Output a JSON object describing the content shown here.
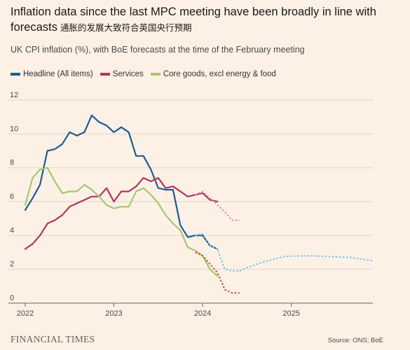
{
  "header": {
    "title": "Inflation data since the last MPC meeting have been broadly in line with forecasts",
    "title_cn": "通胀的发展大致符合英国央行预期",
    "subtitle": "UK CPI inflation (%), with BoE forecasts at the time of the February meeting"
  },
  "footer": {
    "brand": "FINANCIAL TIMES",
    "source": "Source: ONS; BoE"
  },
  "chart_data": {
    "type": "line",
    "ylim": [
      0,
      12
    ],
    "yticks": [
      "0",
      "2",
      "4",
      "6",
      "8",
      "10",
      "12"
    ],
    "xlim": [
      2022.0,
      2025.92
    ],
    "xticks": [
      {
        "value": 2022,
        "label": "2022"
      },
      {
        "value": 2023,
        "label": "2023"
      },
      {
        "value": 2024,
        "label": "2024"
      },
      {
        "value": 2025,
        "label": "2025"
      }
    ],
    "legend": [
      "Headline (All items)",
      "Services",
      "Core goods, excl energy & food"
    ],
    "series": [
      {
        "name": "Headline (All items)",
        "color": "#1f5a96",
        "style": "solid",
        "points": [
          [
            2022.0,
            5.5
          ],
          [
            2022.083,
            6.2
          ],
          [
            2022.167,
            7.0
          ],
          [
            2022.25,
            9.0
          ],
          [
            2022.333,
            9.1
          ],
          [
            2022.417,
            9.4
          ],
          [
            2022.5,
            10.1
          ],
          [
            2022.583,
            9.9
          ],
          [
            2022.667,
            10.1
          ],
          [
            2022.75,
            11.1
          ],
          [
            2022.833,
            10.7
          ],
          [
            2022.917,
            10.5
          ],
          [
            2023.0,
            10.1
          ],
          [
            2023.083,
            10.4
          ],
          [
            2023.167,
            10.1
          ],
          [
            2023.25,
            8.7
          ],
          [
            2023.333,
            8.7
          ],
          [
            2023.417,
            7.9
          ],
          [
            2023.5,
            6.8
          ],
          [
            2023.583,
            6.7
          ],
          [
            2023.667,
            6.7
          ],
          [
            2023.75,
            4.6
          ],
          [
            2023.833,
            3.9
          ],
          [
            2023.917,
            4.0
          ],
          [
            2024.0,
            4.0
          ],
          [
            2024.083,
            3.4
          ],
          [
            2024.167,
            3.2
          ]
        ]
      },
      {
        "name": "Services",
        "color": "#b0355f",
        "style": "solid",
        "points": [
          [
            2022.0,
            3.2
          ],
          [
            2022.083,
            3.5
          ],
          [
            2022.167,
            4.0
          ],
          [
            2022.25,
            4.7
          ],
          [
            2022.333,
            4.9
          ],
          [
            2022.417,
            5.2
          ],
          [
            2022.5,
            5.7
          ],
          [
            2022.583,
            5.9
          ],
          [
            2022.667,
            6.1
          ],
          [
            2022.75,
            6.3
          ],
          [
            2022.833,
            6.3
          ],
          [
            2022.917,
            6.8
          ],
          [
            2023.0,
            6.0
          ],
          [
            2023.083,
            6.6
          ],
          [
            2023.167,
            6.6
          ],
          [
            2023.25,
            6.9
          ],
          [
            2023.333,
            7.4
          ],
          [
            2023.417,
            7.2
          ],
          [
            2023.5,
            7.4
          ],
          [
            2023.583,
            6.8
          ],
          [
            2023.667,
            6.9
          ],
          [
            2023.75,
            6.6
          ],
          [
            2023.833,
            6.3
          ],
          [
            2023.917,
            6.4
          ],
          [
            2024.0,
            6.5
          ],
          [
            2024.083,
            6.1
          ],
          [
            2024.167,
            6.0
          ]
        ]
      },
      {
        "name": "Core goods, excl energy & food",
        "color": "#a5c86c",
        "style": "solid",
        "points": [
          [
            2022.0,
            5.8
          ],
          [
            2022.083,
            7.4
          ],
          [
            2022.167,
            7.9
          ],
          [
            2022.25,
            8.0
          ],
          [
            2022.333,
            7.2
          ],
          [
            2022.417,
            6.5
          ],
          [
            2022.5,
            6.6
          ],
          [
            2022.583,
            6.6
          ],
          [
            2022.667,
            7.0
          ],
          [
            2022.75,
            6.7
          ],
          [
            2022.833,
            6.3
          ],
          [
            2022.917,
            5.8
          ],
          [
            2023.0,
            5.6
          ],
          [
            2023.083,
            5.7
          ],
          [
            2023.167,
            5.7
          ],
          [
            2023.25,
            6.6
          ],
          [
            2023.333,
            6.8
          ],
          [
            2023.417,
            6.4
          ],
          [
            2023.5,
            5.9
          ],
          [
            2023.583,
            5.2
          ],
          [
            2023.667,
            4.7
          ],
          [
            2023.75,
            4.3
          ],
          [
            2023.833,
            3.3
          ],
          [
            2023.917,
            3.1
          ],
          [
            2024.0,
            2.8
          ],
          [
            2024.083,
            2.0
          ],
          [
            2024.167,
            1.6
          ]
        ]
      },
      {
        "name": "Headline (All items) forecast",
        "color": "#7ec3e6",
        "style": "dashed",
        "points": [
          [
            2023.917,
            4.0
          ],
          [
            2024.0,
            4.1
          ],
          [
            2024.083,
            3.4
          ],
          [
            2024.167,
            3.2
          ],
          [
            2024.25,
            2.0
          ],
          [
            2024.333,
            1.9
          ],
          [
            2024.417,
            1.9
          ],
          [
            2024.5,
            2.1
          ],
          [
            2024.667,
            2.4
          ],
          [
            2024.917,
            2.75
          ],
          [
            2025.167,
            2.8
          ],
          [
            2025.417,
            2.75
          ],
          [
            2025.667,
            2.7
          ],
          [
            2025.917,
            2.5
          ]
        ]
      },
      {
        "name": "Services forecast",
        "color": "#e58aa6",
        "style": "dashed",
        "points": [
          [
            2023.917,
            6.4
          ],
          [
            2024.0,
            6.6
          ],
          [
            2024.083,
            6.2
          ],
          [
            2024.167,
            5.8
          ],
          [
            2024.25,
            5.4
          ],
          [
            2024.333,
            4.9
          ],
          [
            2024.417,
            4.9
          ]
        ]
      },
      {
        "name": "Core goods forecast",
        "color": "#c94a3f",
        "style": "dashed",
        "points": [
          [
            2023.917,
            3.0
          ],
          [
            2024.0,
            2.8
          ],
          [
            2024.083,
            2.3
          ],
          [
            2024.167,
            1.8
          ],
          [
            2024.25,
            0.8
          ],
          [
            2024.333,
            0.6
          ],
          [
            2024.417,
            0.6
          ]
        ]
      }
    ]
  }
}
